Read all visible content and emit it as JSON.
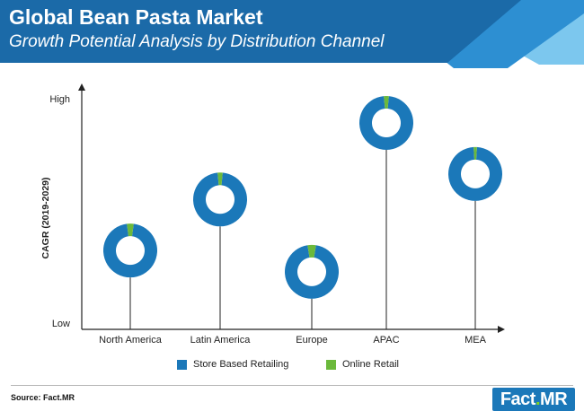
{
  "header": {
    "title": "Global Bean Pasta Market",
    "subtitle": "Growth Potential Analysis by Distribution Channel"
  },
  "colors": {
    "header_dark": "#1b6aa8",
    "header_mid": "#2d8fd2",
    "header_light": "#7cc7ee",
    "store": "#1b78b9",
    "online": "#6bb93b",
    "axis": "#222222"
  },
  "chart_data": {
    "type": "scatter",
    "ylabel": "CAGR (2019-2029)",
    "y_ticks": [
      "Low",
      "High"
    ],
    "ylim": [
      0,
      100
    ],
    "categories": [
      "North America",
      "Latin America",
      "Europe",
      "APAC",
      "MEA"
    ],
    "y_values": [
      32,
      56,
      22,
      92,
      68
    ],
    "series": [
      {
        "name": "Store Based Retailing",
        "values": [
          96,
          97,
          95,
          97,
          98
        ]
      },
      {
        "name": "Online Retail",
        "values": [
          4,
          3,
          5,
          3,
          2
        ]
      }
    ],
    "legend_position": "bottom-center",
    "grid": false
  },
  "footer": {
    "source": "Source: Fact.MR",
    "logo": {
      "part1": "Fact",
      "dot": ".",
      "part2": "MR"
    }
  }
}
